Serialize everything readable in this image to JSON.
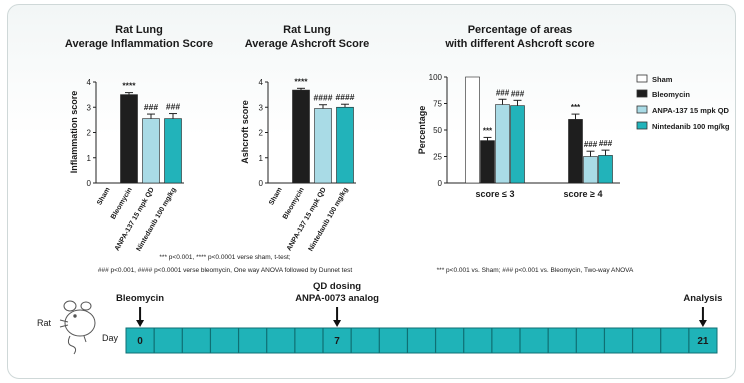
{
  "colors": {
    "sham": "#ffffff",
    "bleomycin": "#1e1e1e",
    "anpa": "#a9dbe6",
    "nintedanib": "#22b3ba",
    "timeline": "#1fb3b8"
  },
  "legend": {
    "items": [
      {
        "label": "Sham",
        "color": "#ffffff"
      },
      {
        "label": "Bleomycin",
        "color": "#1e1e1e"
      },
      {
        "label": "ANPA-137 15 mpk QD",
        "color": "#a9dbe6"
      },
      {
        "label": "Nintedanib 100 mg/kg",
        "color": "#22b3ba"
      }
    ]
  },
  "chart_data": [
    {
      "type": "bar",
      "title": "Rat Lung",
      "subtitle": "Average Inflammation Score",
      "ylabel": "Inflammation score",
      "ylim": [
        0,
        4
      ],
      "yticks": [
        "0",
        "1",
        "2",
        "3",
        "4"
      ],
      "categories": [
        "Sham",
        "Bleomycin",
        "ANPA-137 15 mpk QD",
        "Nintedanib 100 mg/kg"
      ],
      "values": [
        0,
        3.5,
        2.55,
        2.55
      ],
      "errors": [
        0,
        0.08,
        0.18,
        0.2
      ],
      "annotations": [
        "",
        "****",
        "###",
        "###"
      ]
    },
    {
      "type": "bar",
      "title": "Rat Lung",
      "subtitle": "Average Ashcroft Score",
      "ylabel": "Ashcroft score",
      "ylim": [
        0,
        4
      ],
      "yticks": [
        "0",
        "1",
        "2",
        "3",
        "4"
      ],
      "categories": [
        "Sham",
        "Bleomycin",
        "ANPA-137 15 mpk QD",
        "Nintedanib 100 mg/kg"
      ],
      "values": [
        0,
        3.68,
        2.95,
        3.0
      ],
      "errors": [
        0,
        0.07,
        0.15,
        0.12
      ],
      "annotations": [
        "",
        "****",
        "####",
        "####"
      ]
    },
    {
      "type": "bar",
      "title": "Percentage of areas",
      "subtitle": "with different Ashcroft score",
      "ylabel": "Percentage",
      "ylim": [
        0,
        100
      ],
      "yticks": [
        "0",
        "25",
        "50",
        "75",
        "100"
      ],
      "categories": [
        "score ≤ 3",
        "score ≥ 4"
      ],
      "series": [
        {
          "name": "Sham",
          "values": [
            100,
            0
          ],
          "errors": [
            0,
            0
          ],
          "annotations": [
            "",
            ""
          ]
        },
        {
          "name": "Bleomycin",
          "values": [
            40,
            60
          ],
          "errors": [
            3,
            5
          ],
          "annotations": [
            "***",
            "***"
          ]
        },
        {
          "name": "ANPA-137 15 mpk QD",
          "values": [
            74,
            25
          ],
          "errors": [
            5,
            5
          ],
          "annotations": [
            "###",
            "###"
          ]
        },
        {
          "name": "Nintedanib 100 mg/kg",
          "values": [
            73,
            26
          ],
          "errors": [
            5,
            5
          ],
          "annotations": [
            "###",
            "###"
          ]
        }
      ]
    }
  ],
  "footnotes": {
    "left_line1": "*** p<0.001, **** p<0.0001 verse sham, t-test;",
    "left_line2": "### p<0.001, #### p<0.0001 verse bleomycin, One way ANOVA followed by Dunnet test",
    "right": "*** p<0.001 vs. Sham; ### p<0.001 vs. Bleomycin, Two-way ANOVA"
  },
  "timeline": {
    "species": "Rat",
    "day_label": "Day",
    "cells": 21,
    "day_markers": [
      {
        "label": "0",
        "cell": 0
      },
      {
        "label": "7",
        "cell": 7
      },
      {
        "label": "21",
        "cell": 20
      }
    ],
    "events": [
      {
        "label": "Bleomycin",
        "cell": 0
      },
      {
        "label": "QD dosing",
        "label2": "ANPA-0073 analog",
        "cell": 7
      },
      {
        "label": "Analysis",
        "cell": 20
      }
    ]
  }
}
